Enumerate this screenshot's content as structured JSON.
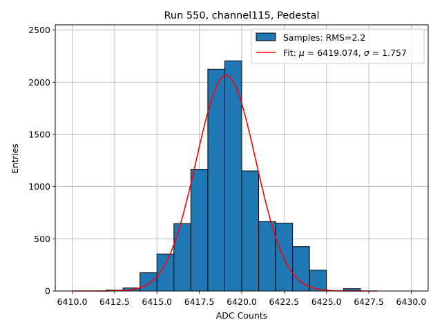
{
  "chart_data": {
    "type": "bar",
    "title": "Run 550, channel115, Pedestal",
    "xlabel": "ADC Counts",
    "ylabel": "Entries",
    "xlim": [
      6409.0,
      6431.0
    ],
    "ylim": [
      0,
      2550
    ],
    "grid": true,
    "legend_position": "top-right",
    "xticks": [
      {
        "value": 6410.0,
        "label": "6410.0"
      },
      {
        "value": 6412.5,
        "label": "6412.5"
      },
      {
        "value": 6415.0,
        "label": "6415.0"
      },
      {
        "value": 6417.5,
        "label": "6417.5"
      },
      {
        "value": 6420.0,
        "label": "6420.0"
      },
      {
        "value": 6422.5,
        "label": "6422.5"
      },
      {
        "value": 6425.0,
        "label": "6425.0"
      },
      {
        "value": 6427.5,
        "label": "6427.5"
      },
      {
        "value": 6430.0,
        "label": "6430.0"
      }
    ],
    "yticks": [
      {
        "value": 0,
        "label": "0"
      },
      {
        "value": 500,
        "label": "500"
      },
      {
        "value": 1000,
        "label": "1000"
      },
      {
        "value": 1500,
        "label": "1500"
      },
      {
        "value": 2000,
        "label": "2000"
      },
      {
        "value": 2500,
        "label": "2500"
      }
    ],
    "series": [
      {
        "name": "Samples: RMS=2.2",
        "kind": "histogram",
        "color": "#1f77b4",
        "edgecolor": "#000000",
        "bins": [
          {
            "x0": 6410,
            "x1": 6411,
            "value": 0
          },
          {
            "x0": 6411,
            "x1": 6412,
            "value": 0
          },
          {
            "x0": 6412,
            "x1": 6413,
            "value": 8
          },
          {
            "x0": 6413,
            "x1": 6414,
            "value": 30
          },
          {
            "x0": 6414,
            "x1": 6415,
            "value": 175
          },
          {
            "x0": 6415,
            "x1": 6416,
            "value": 355
          },
          {
            "x0": 6416,
            "x1": 6417,
            "value": 645
          },
          {
            "x0": 6417,
            "x1": 6418,
            "value": 1165
          },
          {
            "x0": 6418,
            "x1": 6419,
            "value": 2125
          },
          {
            "x0": 6419,
            "x1": 6420,
            "value": 2205
          },
          {
            "x0": 6420,
            "x1": 6421,
            "value": 1150
          },
          {
            "x0": 6421,
            "x1": 6422,
            "value": 665
          },
          {
            "x0": 6422,
            "x1": 6423,
            "value": 650
          },
          {
            "x0": 6423,
            "x1": 6424,
            "value": 425
          },
          {
            "x0": 6424,
            "x1": 6425,
            "value": 200
          },
          {
            "x0": 6425,
            "x1": 6426,
            "value": 0
          },
          {
            "x0": 6426,
            "x1": 6427,
            "value": 22
          },
          {
            "x0": 6427,
            "x1": 6428,
            "value": 0
          }
        ]
      },
      {
        "name": "Fit: μ = 6419.074, σ = 1.757",
        "legend_parts": [
          {
            "t": "Fit: ",
            "italic": false
          },
          {
            "t": "μ",
            "italic": true
          },
          {
            "t": " = 6419.074, ",
            "italic": false
          },
          {
            "t": "σ",
            "italic": true
          },
          {
            "t": " = 1.757",
            "italic": false
          }
        ],
        "kind": "gaussian-fit",
        "color": "#ff0000",
        "mu": 6419.074,
        "sigma": 1.757,
        "amplitude": 2065,
        "x_range": [
          6410,
          6428
        ]
      }
    ]
  }
}
